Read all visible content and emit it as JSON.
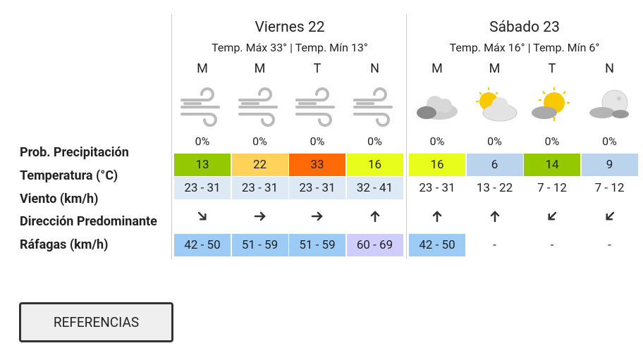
{
  "labels": [
    "Prob. Precipitación",
    "Temperatura (°C)",
    "Viento (km/h)",
    "Dirección Predominante",
    "Ráfagas (km/h)"
  ],
  "days": [
    {
      "title": "Viernes 22",
      "temps": "Temp. Máx 33° | Temp. Mín 13°",
      "wind_bg": "#dde9f5",
      "periods": [
        {
          "period": "M",
          "precip": "0%",
          "temp": 13,
          "temp_color": "#94c800",
          "wind": "23 - 31",
          "gust": "42 - 50",
          "gust_color": "#9ccbf5"
        },
        {
          "period": "M",
          "precip": "0%",
          "temp": 22,
          "temp_color": "#ffd35a",
          "wind": "23 - 31",
          "gust": "51 - 59",
          "gust_color": "#9ccbf5"
        },
        {
          "period": "T",
          "precip": "0%",
          "temp": 33,
          "temp_color": "#ff6a06",
          "wind": "23 - 31",
          "gust": "51 - 59",
          "gust_color": "#9ccbf5"
        },
        {
          "period": "N",
          "precip": "0%",
          "temp": 16,
          "temp_color": "#e8fd1c",
          "wind": "32 - 41",
          "gust": "60 - 69",
          "gust_color": "#cfcdfb"
        }
      ]
    },
    {
      "title": "Sábado 23",
      "temps": "Temp. Máx 16° | Temp. Mín 6°",
      "wind_bg": "#ffffff",
      "periods": [
        {
          "period": "M",
          "precip": "0%",
          "temp": 16,
          "temp_color": "#e8fd1c",
          "wind": "23 - 31",
          "gust": "42 - 50",
          "gust_color": "#9ccbf5"
        },
        {
          "period": "M",
          "precip": "0%",
          "temp": 6,
          "temp_color": "#bad4ee",
          "wind": "13 - 22",
          "gust": "-",
          "gust_color": "#ffffff"
        },
        {
          "period": "T",
          "precip": "0%",
          "temp": 14,
          "temp_color": "#94c800",
          "wind": "7 - 12",
          "gust": "-",
          "gust_color": "#ffffff"
        },
        {
          "period": "N",
          "precip": "0%",
          "temp": 9,
          "temp_color": "#bad4ee",
          "wind": "7 - 12",
          "gust": "-",
          "gust_color": "#ffffff"
        }
      ]
    }
  ],
  "button": "REFERENCIAS"
}
